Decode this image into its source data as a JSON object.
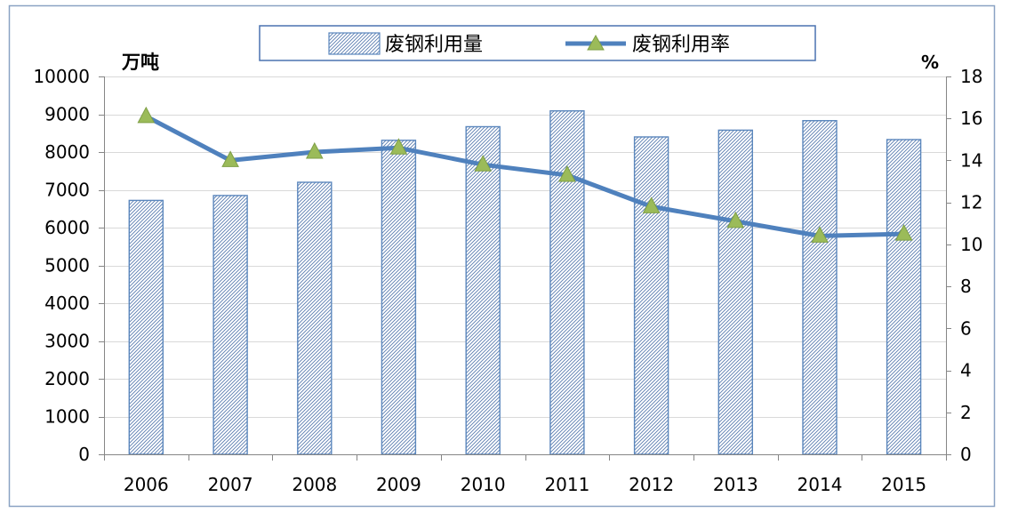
{
  "chart_data": {
    "type": "bar",
    "categories": [
      "2006",
      "2007",
      "2008",
      "2009",
      "2010",
      "2011",
      "2012",
      "2013",
      "2014",
      "2015"
    ],
    "series": [
      {
        "name": "废钢利用量",
        "type": "bar",
        "axis": "left",
        "values": [
          6720,
          6850,
          7200,
          8310,
          8670,
          9090,
          8400,
          8580,
          8830,
          8330
        ]
      },
      {
        "name": "废钢利用率",
        "type": "line",
        "axis": "right",
        "values": [
          16.1,
          14.0,
          14.4,
          14.6,
          13.8,
          13.3,
          11.8,
          11.1,
          10.4,
          10.5
        ]
      }
    ],
    "y_left": {
      "unit_label": "万吨",
      "range": [
        0,
        10000
      ],
      "ticks": [
        "0",
        "1000",
        "2000",
        "3000",
        "4000",
        "5000",
        "6000",
        "7000",
        "8000",
        "9000",
        "10000"
      ]
    },
    "y_right": {
      "unit_label": "%",
      "range": [
        0,
        18
      ],
      "ticks": [
        "0",
        "2",
        "4",
        "6",
        "8",
        "10",
        "12",
        "14",
        "16",
        "18"
      ]
    },
    "grid": true,
    "legend_position": "top-center",
    "colors": {
      "bar_fill": "#ffffff",
      "bar_hatch": "#5a7db0",
      "bar_border": "#5b87bd",
      "line": "#4f81bd",
      "marker_fill": "#9bbb59",
      "marker_stroke": "#7f9f46",
      "grid": "#d9d9d9",
      "axis": "#868686",
      "frame": "#8aa2c3",
      "legend_border": "#4a72b0",
      "text": "#000000"
    }
  }
}
